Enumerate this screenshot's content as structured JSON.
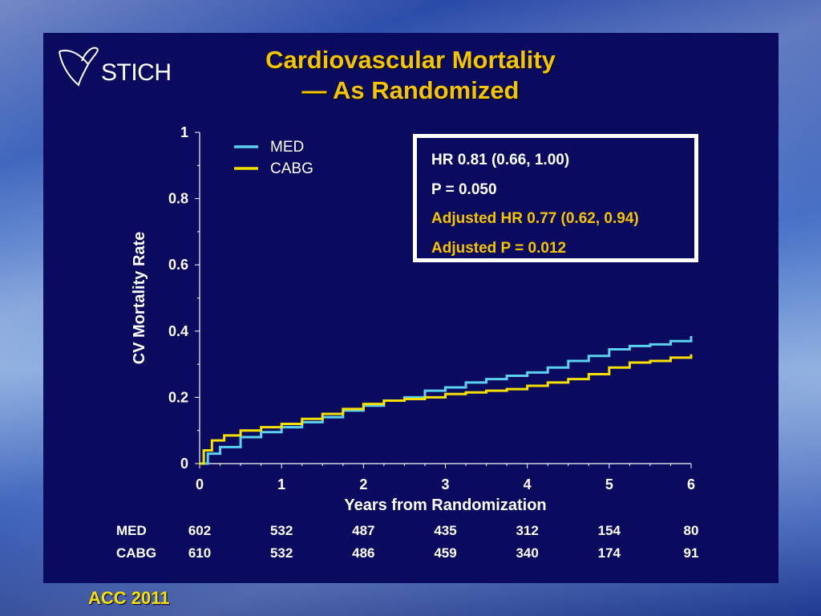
{
  "logo": {
    "text": "STICH",
    "icon": "heart-ribbon-icon"
  },
  "title_lines": [
    "Cardiovascular Mortality",
    "— As Randomized"
  ],
  "stats": [
    {
      "text": "HR 0.81 (0.66, 1.00)",
      "color": "#ffffff"
    },
    {
      "text": "P = 0.050",
      "color": "#ffffff"
    },
    {
      "text": "Adjusted HR 0.77 (0.62, 0.94)",
      "color": "#f5c400"
    },
    {
      "text": "Adjusted P = 0.012",
      "color": "#f5c400"
    }
  ],
  "footer": "ACC 2011",
  "colors": {
    "med": "#5bd1f0",
    "cabg": "#f5e000",
    "panel": "#0a0a5e",
    "title": "#f5c400"
  },
  "chart_data": {
    "type": "line",
    "title": "Cardiovascular Mortality — As Randomized",
    "xlabel": "Years from Randomization",
    "ylabel": "CV Mortality Rate",
    "xlim": [
      0,
      6
    ],
    "ylim": [
      0,
      1
    ],
    "xticks": [
      "0",
      "1",
      "2",
      "3",
      "4",
      "5",
      "6"
    ],
    "yticks": [
      "0",
      "0.2",
      "0.4",
      "0.6",
      "0.8",
      "1"
    ],
    "legend_placement": "top-left",
    "grid": false,
    "series": [
      {
        "name": "MED",
        "color": "#5bd1f0",
        "x": [
          0,
          0.1,
          0.25,
          0.5,
          0.75,
          1.0,
          1.25,
          1.5,
          1.75,
          2.0,
          2.25,
          2.5,
          2.75,
          3.0,
          3.25,
          3.5,
          3.75,
          4.0,
          4.25,
          4.5,
          4.75,
          5.0,
          5.25,
          5.5,
          5.75,
          6.0
        ],
        "y": [
          0,
          0.03,
          0.05,
          0.08,
          0.095,
          0.11,
          0.125,
          0.14,
          0.16,
          0.175,
          0.19,
          0.2,
          0.22,
          0.23,
          0.245,
          0.255,
          0.265,
          0.275,
          0.29,
          0.31,
          0.325,
          0.345,
          0.355,
          0.36,
          0.37,
          0.385
        ]
      },
      {
        "name": "CABG",
        "color": "#f5e000",
        "x": [
          0,
          0.05,
          0.15,
          0.3,
          0.5,
          0.75,
          1.0,
          1.25,
          1.5,
          1.75,
          2.0,
          2.25,
          2.5,
          2.75,
          3.0,
          3.25,
          3.5,
          3.75,
          4.0,
          4.25,
          4.5,
          4.75,
          5.0,
          5.25,
          5.5,
          5.75,
          6.0
        ],
        "y": [
          0,
          0.04,
          0.07,
          0.085,
          0.1,
          0.11,
          0.12,
          0.135,
          0.15,
          0.165,
          0.18,
          0.19,
          0.195,
          0.2,
          0.21,
          0.215,
          0.22,
          0.225,
          0.235,
          0.245,
          0.255,
          0.27,
          0.29,
          0.305,
          0.31,
          0.32,
          0.33
        ]
      }
    ]
  },
  "risk_table": {
    "x_positions": [
      0,
      1,
      2,
      3,
      4,
      5,
      6
    ],
    "rows": [
      {
        "label": "MED",
        "values": [
          "602",
          "532",
          "487",
          "435",
          "312",
          "154",
          "80"
        ]
      },
      {
        "label": "CABG",
        "values": [
          "610",
          "532",
          "486",
          "459",
          "340",
          "174",
          "91"
        ]
      }
    ]
  }
}
